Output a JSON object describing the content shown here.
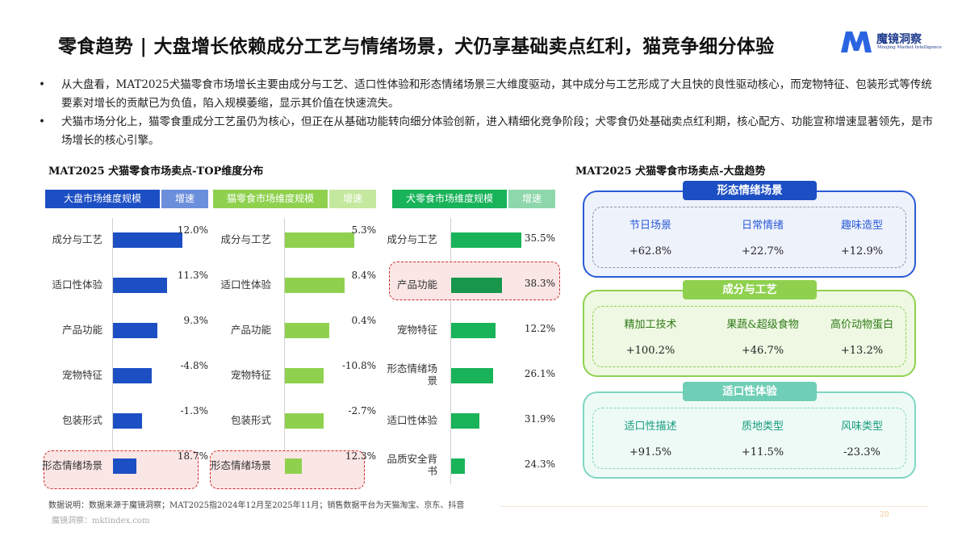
{
  "title": "零食趋势 | 大盘增长依赖成分工艺与情绪场景，犬仍享基础卖点红利，猫竞争细分体验",
  "logo": {
    "name": "魔镜洞察",
    "subtitle": "Moojing Market Intelligence"
  },
  "bullets": [
    "从大盘看，MAT2025犬猫零食市场增长主要由成分与工艺、适口性体验和形态情绪场景三大维度驱动，其中成分与工艺形成了大且快的良性驱动核心，而宠物特征、包装形式等传统要素对增长的贡献已为负值，陷入规模萎缩，显示其价值在快速流失。",
    "犬猫市场分化上，猫零食重成分工艺虽仍为核心，但正在从基础功能转向细分体验创新，进入精细化竞争阶段；犬零食仍处基础卖点红利期，核心配方、功能宣称增速显著领先，是市场增长的核心引擎。"
  ],
  "left_title": "MAT2025 犬猫零食市场卖点-TOP维度分布",
  "right_title": "MAT2025 犬猫零食市场卖点-大盘趋势",
  "charts": [
    {
      "header": "大盘市场维度规模",
      "growth_header": "增速",
      "color": "#1c4fc4",
      "light": "#6c8fdc",
      "items": [
        {
          "label": "成分与工艺",
          "growth": "12.0%",
          "value": 0.9
        },
        {
          "label": "适口性体验",
          "growth": "11.3%",
          "value": 0.7
        },
        {
          "label": "产品功能",
          "growth": "9.3%",
          "value": 0.58
        },
        {
          "label": "宠物特征",
          "growth": "-4.8%",
          "value": 0.5
        },
        {
          "label": "包装形式",
          "growth": "-1.3%",
          "value": 0.38
        },
        {
          "label": "形态情绪场景",
          "growth": "18.7%",
          "value": 0.3
        }
      ]
    },
    {
      "header": "猫零食市场维度规模",
      "growth_header": "增速",
      "color": "#8fd14f",
      "light": "#c5e89f",
      "items": [
        {
          "label": "成分与工艺",
          "growth": "5.3%",
          "value": 0.9
        },
        {
          "label": "适口性体验",
          "growth": "8.4%",
          "value": 0.78
        },
        {
          "label": "产品功能",
          "growth": "0.4%",
          "value": 0.58
        },
        {
          "label": "宠物特征",
          "growth": "-10.8%",
          "value": 0.5
        },
        {
          "label": "包装形式",
          "growth": "-2.7%",
          "value": 0.5
        },
        {
          "label": "形态情绪场景",
          "growth": "12.3%",
          "value": 0.22
        }
      ]
    },
    {
      "header": "犬零食市场维度规模",
      "growth_header": "增速",
      "color": "#19b35a",
      "light": "#8ed7ac",
      "items": [
        {
          "label": "成分与工艺",
          "growth": "35.5%",
          "value": 0.95
        },
        {
          "label": "产品功能",
          "growth": "38.3%",
          "value": 0.68
        },
        {
          "label": "宠物特征",
          "growth": "12.2%",
          "value": 0.6
        },
        {
          "label": "形态情绪场景",
          "growth": "26.1%",
          "value": 0.56
        },
        {
          "label": "适口性体验",
          "growth": "31.9%",
          "value": 0.38
        },
        {
          "label": "品质安全背书",
          "growth": "24.3%",
          "value": 0.18
        }
      ]
    }
  ],
  "panels": [
    {
      "tag": "形态情绪场景",
      "border": "#2a5bd7",
      "fill": "#eef2fb",
      "tagcolor": "#1c4fc4",
      "inner": "#8e96a6",
      "labelcolor": "#2a5bd7",
      "items": [
        {
          "label": "节日场景",
          "value": "+62.8%"
        },
        {
          "label": "日常情绪",
          "value": "+22.7%"
        },
        {
          "label": "趣味造型",
          "value": "+12.9%"
        }
      ]
    },
    {
      "tag": "成分与工艺",
      "border": "#8fd14f",
      "fill": "#eef8e2",
      "tagcolor": "#8fd14f",
      "inner": "#8fd14f",
      "labelcolor": "#2f7a17",
      "items": [
        {
          "label": "精加工技术",
          "value": "+100.2%"
        },
        {
          "label": "果蔬&超级食物",
          "value": "+46.7%"
        },
        {
          "label": "高价动物蛋白",
          "value": "+13.2%"
        }
      ]
    },
    {
      "tag": "适口性体验",
      "border": "#7fd6c1",
      "fill": "#eefaf6",
      "tagcolor": "#6fcfb6",
      "inner": "#7fd6c1",
      "labelcolor": "#169c7c",
      "items": [
        {
          "label": "适口性描述",
          "value": "+91.5%"
        },
        {
          "label": "质地类型",
          "value": "+11.5%"
        },
        {
          "label": "风味类型",
          "value": "-23.3%"
        }
      ]
    }
  ],
  "note": "数据说明：数据来源于魔镜洞察；MAT2025指2024年12月至2025年11月；销售数据平台为天猫淘宝、京东、抖音",
  "footer": "魔镜洞察：mktindex.com",
  "page": "20"
}
